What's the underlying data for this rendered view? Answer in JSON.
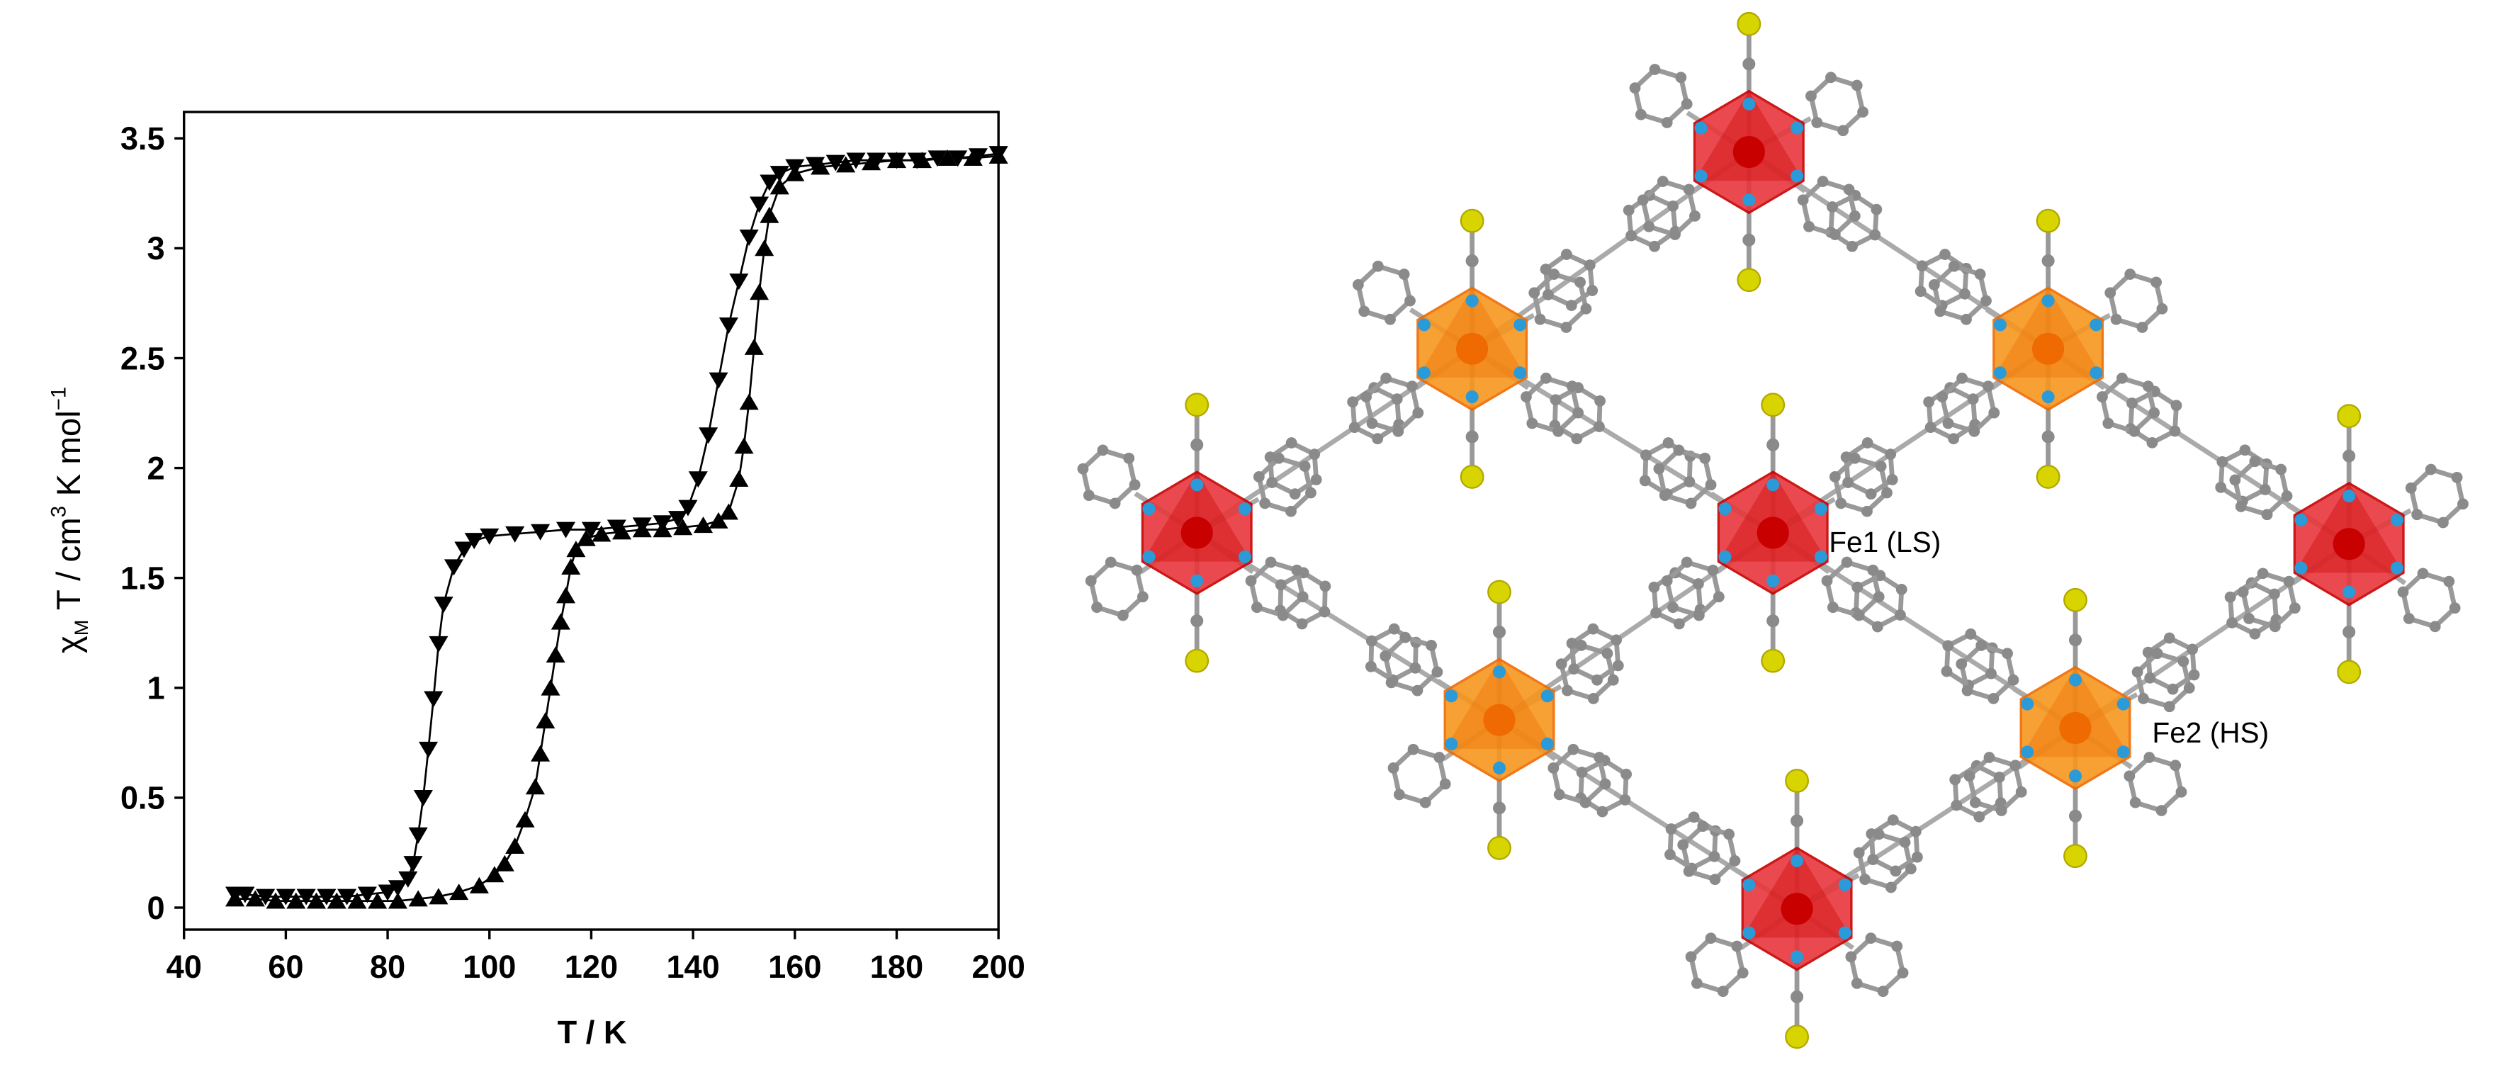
{
  "chart_data": {
    "type": "line",
    "xlabel": "T / K",
    "ylabel_parts": [
      "χ",
      "M",
      "T / cm",
      "3",
      "K mol",
      "−1"
    ],
    "xlim": [
      40,
      200
    ],
    "xticks": [
      40,
      60,
      80,
      100,
      120,
      140,
      160,
      180,
      200
    ],
    "ylim": [
      -0.1,
      3.62
    ],
    "yticks": [
      0,
      0.5,
      1,
      1.5,
      2,
      2.5,
      3,
      3.5
    ],
    "grid": false,
    "series": [
      {
        "marker": "triangle-down",
        "color": "#000000",
        "x": [
          200,
          196,
          192,
          188,
          184,
          180,
          176,
          172,
          168,
          164,
          160,
          157,
          155,
          153,
          151,
          149,
          147,
          145,
          143,
          141,
          139,
          137,
          134,
          130,
          125,
          120,
          115,
          110,
          105,
          100,
          97,
          95,
          93,
          91,
          90,
          89,
          88,
          87,
          86,
          85,
          84,
          82,
          80,
          76,
          72,
          68,
          64,
          60,
          56,
          52,
          50
        ],
        "values": [
          3.43,
          3.42,
          3.41,
          3.41,
          3.4,
          3.4,
          3.4,
          3.4,
          3.39,
          3.38,
          3.37,
          3.34,
          3.3,
          3.2,
          3.05,
          2.85,
          2.65,
          2.4,
          2.15,
          1.95,
          1.82,
          1.77,
          1.75,
          1.74,
          1.73,
          1.72,
          1.72,
          1.71,
          1.7,
          1.69,
          1.67,
          1.63,
          1.55,
          1.38,
          1.2,
          0.95,
          0.72,
          0.5,
          0.33,
          0.2,
          0.13,
          0.09,
          0.07,
          0.06,
          0.05,
          0.05,
          0.05,
          0.05,
          0.05,
          0.06,
          0.06
        ]
      },
      {
        "marker": "triangle-up",
        "color": "#000000",
        "x": [
          50,
          54,
          58,
          62,
          66,
          70,
          74,
          78,
          82,
          86,
          90,
          94,
          98,
          101,
          103,
          105,
          107,
          109,
          110,
          111,
          112,
          113,
          114,
          115,
          116,
          117,
          119,
          122,
          126,
          130,
          134,
          138,
          142,
          145,
          147,
          149,
          150,
          151,
          152,
          153,
          154,
          155,
          157,
          160,
          165,
          170,
          175,
          180,
          185,
          190,
          195,
          200
        ],
        "values": [
          0.04,
          0.04,
          0.03,
          0.03,
          0.03,
          0.03,
          0.03,
          0.03,
          0.03,
          0.04,
          0.05,
          0.07,
          0.1,
          0.15,
          0.2,
          0.28,
          0.4,
          0.55,
          0.7,
          0.85,
          1.0,
          1.15,
          1.3,
          1.42,
          1.55,
          1.63,
          1.68,
          1.7,
          1.71,
          1.72,
          1.72,
          1.73,
          1.74,
          1.76,
          1.8,
          1.95,
          2.1,
          2.3,
          2.55,
          2.8,
          3.0,
          3.15,
          3.28,
          3.34,
          3.37,
          3.38,
          3.39,
          3.4,
          3.4,
          3.41,
          3.41,
          3.42
        ]
      }
    ]
  },
  "diagram": {
    "labels": [
      "Fe1 (LS)",
      "Fe2 (HS)"
    ]
  }
}
